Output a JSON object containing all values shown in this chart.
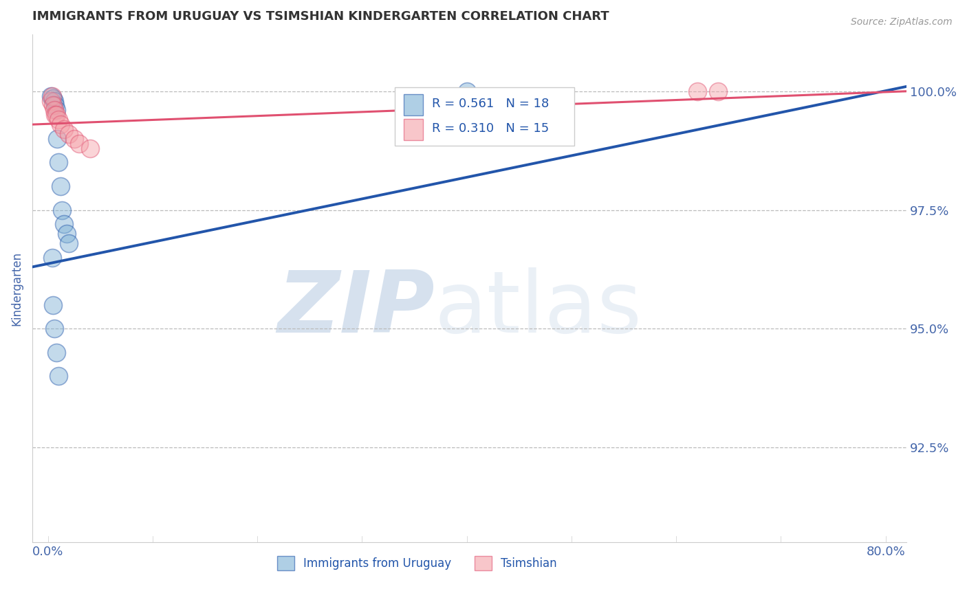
{
  "title": "IMMIGRANTS FROM URUGUAY VS TSIMSHIAN KINDERGARTEN CORRELATION CHART",
  "source": "Source: ZipAtlas.com",
  "ylabel": "Kindergarten",
  "legend_labels": [
    "Immigrants from Uruguay",
    "Tsimshian"
  ],
  "r_uruguay": 0.561,
  "n_uruguay": 18,
  "r_tsimshian": 0.31,
  "n_tsimshian": 15,
  "xlim": [
    -1.5,
    82
  ],
  "ylim": [
    90.5,
    101.2
  ],
  "yticks": [
    92.5,
    95.0,
    97.5,
    100.0
  ],
  "xtick_labels": [
    "0.0%",
    "80.0%"
  ],
  "ytick_labels": [
    "92.5%",
    "95.0%",
    "97.5%",
    "100.0%"
  ],
  "blue_color": "#7BAFD4",
  "pink_color": "#F4A0A8",
  "blue_line_color": "#2255AA",
  "pink_line_color": "#E05070",
  "blue_scatter_x": [
    0.3,
    0.5,
    0.6,
    0.7,
    0.8,
    0.9,
    1.0,
    1.2,
    1.3,
    1.5,
    1.8,
    2.0,
    0.4,
    0.5,
    0.6,
    0.8,
    1.0,
    40.0
  ],
  "blue_scatter_y": [
    99.9,
    99.85,
    99.8,
    99.7,
    99.6,
    99.0,
    98.5,
    98.0,
    97.5,
    97.2,
    97.0,
    96.8,
    96.5,
    95.5,
    95.0,
    94.5,
    94.0,
    100.0
  ],
  "pink_scatter_x": [
    0.3,
    0.4,
    0.5,
    0.6,
    0.7,
    0.8,
    1.0,
    1.2,
    1.5,
    2.0,
    2.5,
    3.0,
    4.0,
    62.0,
    64.0
  ],
  "pink_scatter_y": [
    99.8,
    99.9,
    99.7,
    99.6,
    99.5,
    99.5,
    99.4,
    99.3,
    99.2,
    99.1,
    99.0,
    98.9,
    98.8,
    100.0,
    100.0
  ],
  "blue_line_x0": -1.5,
  "blue_line_x1": 82,
  "blue_line_y0": 96.3,
  "blue_line_y1": 100.1,
  "pink_line_x0": -1.5,
  "pink_line_x1": 82,
  "pink_line_y0": 99.3,
  "pink_line_y1": 100.0,
  "tick_color": "#4466AA",
  "title_color": "#333333",
  "legend_text_color": "#2255AA",
  "axis_color": "#CCCCCC",
  "grid_color": "#BBBBBB"
}
